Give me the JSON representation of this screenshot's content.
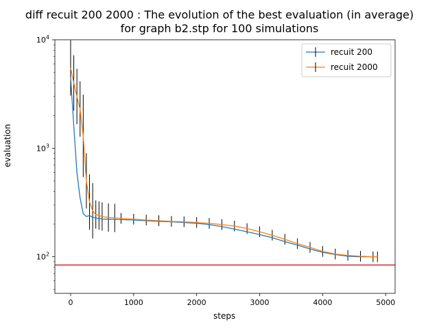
{
  "chart_data": {
    "type": "line",
    "title": "diff recuit 200 2000 : The evolution of the best evaluation (in average)",
    "subtitle": "for graph b2.stp for 100 simulations",
    "xlabel": "steps",
    "ylabel": "evaluation",
    "xlim": [
      -250,
      5150
    ],
    "ylim": [
      46,
      10000
    ],
    "yscale": "log",
    "x_ticks": [
      0,
      1000,
      2000,
      3000,
      4000,
      5000
    ],
    "x_tick_labels": [
      "0",
      "1000",
      "2000",
      "3000",
      "4000",
      "5000"
    ],
    "y_ticks": [
      100,
      1000,
      10000
    ],
    "y_tick_labels": [
      "10^2",
      "10^3",
      "10^4"
    ],
    "grid": false,
    "legend_position": "top-right",
    "reference_line": {
      "y": 84,
      "color": "#d62728"
    },
    "series": [
      {
        "name": "recuit 200",
        "color": "#1f77b4",
        "x": [
          0,
          50,
          100,
          150,
          200,
          250,
          300,
          350,
          400,
          450,
          500,
          600,
          700,
          800,
          1000,
          1200,
          1400,
          1600,
          1800,
          2000,
          2200,
          2400,
          2600,
          2800,
          3000,
          3200,
          3400,
          3600,
          3800,
          4000,
          4200,
          4400,
          4600,
          4800,
          4870
        ],
        "y": [
          4500,
          1600,
          600,
          350,
          250,
          235,
          240,
          230,
          228,
          225,
          223,
          222,
          221,
          220,
          218,
          215,
          212,
          210,
          207,
          203,
          198,
          190,
          180,
          170,
          160,
          150,
          138,
          128,
          118,
          110,
          105,
          101,
          100,
          100,
          100
        ]
      },
      {
        "name": "recuit 2000",
        "color": "#ff7f0e",
        "x": [
          0,
          50,
          100,
          150,
          200,
          250,
          300,
          350,
          400,
          450,
          500,
          600,
          700,
          800,
          1000,
          1200,
          1400,
          1600,
          1800,
          2000,
          2200,
          2400,
          2600,
          2800,
          3000,
          3200,
          3400,
          3600,
          3800,
          4000,
          4200,
          4400,
          4600,
          4800,
          4870
        ],
        "y": [
          5500,
          4000,
          3000,
          2300,
          1300,
          500,
          320,
          265,
          245,
          240,
          235,
          230,
          228,
          226,
          222,
          218,
          215,
          212,
          210,
          207,
          203,
          198,
          192,
          182,
          170,
          158,
          145,
          132,
          122,
          112,
          106,
          103,
          101,
          100,
          100
        ]
      }
    ]
  }
}
